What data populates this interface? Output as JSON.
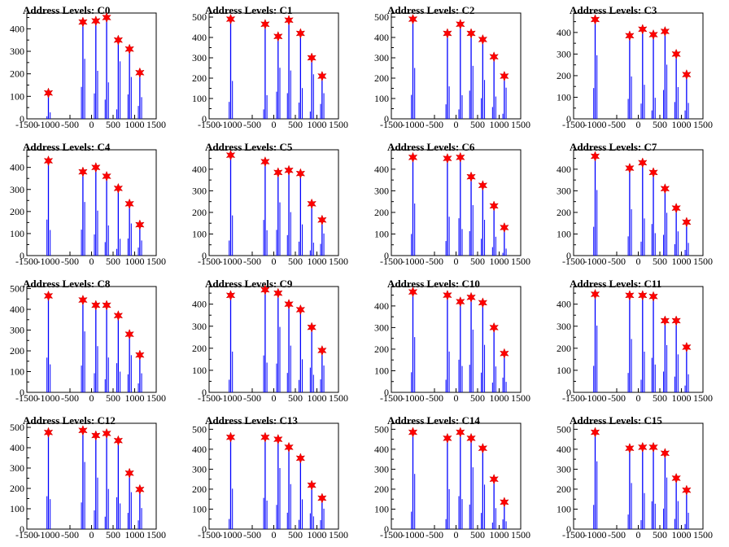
{
  "chart_data": [
    {
      "type": "bar",
      "title": "Address Levels: C0",
      "xlim": [
        -1500,
        1500
      ],
      "yticks": [
        0,
        100,
        200,
        300,
        400
      ],
      "xticks": [
        -1500,
        -1000,
        -500,
        0,
        500,
        1000,
        1500
      ],
      "ylim": [
        0,
        470
      ],
      "peaks": [
        {
          "x": -1000,
          "y": 115
        },
        {
          "x": -200,
          "y": 430
        },
        {
          "x": 100,
          "y": 435
        },
        {
          "x": 350,
          "y": 450
        },
        {
          "x": 620,
          "y": 350
        },
        {
          "x": 880,
          "y": 310
        },
        {
          "x": 1120,
          "y": 205
        }
      ]
    },
    {
      "type": "bar",
      "title": "Address Levels: C1",
      "xlim": [
        -1500,
        1500
      ],
      "yticks": [
        0,
        100,
        200,
        300,
        400,
        500
      ],
      "xticks": [
        -1500,
        -1000,
        -500,
        0,
        500,
        1000,
        1500
      ],
      "ylim": [
        0,
        520
      ],
      "peaks": [
        {
          "x": -1000,
          "y": 490
        },
        {
          "x": -200,
          "y": 465
        },
        {
          "x": 100,
          "y": 405
        },
        {
          "x": 350,
          "y": 485
        },
        {
          "x": 620,
          "y": 420
        },
        {
          "x": 880,
          "y": 300
        },
        {
          "x": 1120,
          "y": 210
        }
      ]
    },
    {
      "type": "bar",
      "title": "Address Levels: C2",
      "xlim": [
        -1500,
        1500
      ],
      "yticks": [
        0,
        100,
        200,
        300,
        400,
        500
      ],
      "xticks": [
        -1500,
        -1000,
        -500,
        0,
        500,
        1000,
        1500
      ],
      "ylim": [
        0,
        520
      ],
      "peaks": [
        {
          "x": -1000,
          "y": 490
        },
        {
          "x": -200,
          "y": 420
        },
        {
          "x": 100,
          "y": 465
        },
        {
          "x": 350,
          "y": 420
        },
        {
          "x": 620,
          "y": 390
        },
        {
          "x": 880,
          "y": 305
        },
        {
          "x": 1120,
          "y": 210
        }
      ]
    },
    {
      "type": "bar",
      "title": "Address Levels: C3",
      "xlim": [
        -1500,
        1500
      ],
      "yticks": [
        0,
        100,
        200,
        300,
        400
      ],
      "xticks": [
        -1500,
        -1000,
        -500,
        0,
        500,
        1000,
        1500
      ],
      "ylim": [
        0,
        490
      ],
      "peaks": [
        {
          "x": -1000,
          "y": 460
        },
        {
          "x": -200,
          "y": 385
        },
        {
          "x": 100,
          "y": 415
        },
        {
          "x": 350,
          "y": 390
        },
        {
          "x": 620,
          "y": 405
        },
        {
          "x": 880,
          "y": 300
        },
        {
          "x": 1120,
          "y": 205
        }
      ]
    },
    {
      "type": "bar",
      "title": "Address Levels: C4",
      "xlim": [
        -1500,
        1500
      ],
      "yticks": [
        0,
        100,
        200,
        300,
        400
      ],
      "xticks": [
        -1500,
        -1000,
        -500,
        0,
        500,
        1000,
        1500
      ],
      "ylim": [
        0,
        480
      ],
      "peaks": [
        {
          "x": -1000,
          "y": 430
        },
        {
          "x": -200,
          "y": 380
        },
        {
          "x": 100,
          "y": 400
        },
        {
          "x": 350,
          "y": 360
        },
        {
          "x": 620,
          "y": 305
        },
        {
          "x": 880,
          "y": 235
        },
        {
          "x": 1120,
          "y": 140
        }
      ]
    },
    {
      "type": "bar",
      "title": "Address Levels: C5",
      "xlim": [
        -1500,
        1500
      ],
      "yticks": [
        0,
        100,
        200,
        300,
        400
      ],
      "xticks": [
        -1500,
        -1000,
        -500,
        0,
        500,
        1000,
        1500
      ],
      "ylim": [
        0,
        490
      ],
      "peaks": [
        {
          "x": -1000,
          "y": 465
        },
        {
          "x": -200,
          "y": 435
        },
        {
          "x": 100,
          "y": 385
        },
        {
          "x": 350,
          "y": 395
        },
        {
          "x": 620,
          "y": 380
        },
        {
          "x": 880,
          "y": 240
        },
        {
          "x": 1120,
          "y": 165
        }
      ]
    },
    {
      "type": "bar",
      "title": "Address Levels: C6",
      "xlim": [
        -1500,
        1500
      ],
      "yticks": [
        0,
        100,
        200,
        300,
        400
      ],
      "xticks": [
        -1500,
        -1000,
        -500,
        0,
        500,
        1000,
        1500
      ],
      "ylim": [
        0,
        490
      ],
      "peaks": [
        {
          "x": -1000,
          "y": 455
        },
        {
          "x": -200,
          "y": 450
        },
        {
          "x": 100,
          "y": 455
        },
        {
          "x": 350,
          "y": 365
        },
        {
          "x": 620,
          "y": 325
        },
        {
          "x": 880,
          "y": 230
        },
        {
          "x": 1120,
          "y": 130
        }
      ]
    },
    {
      "type": "bar",
      "title": "Address Levels: C7",
      "xlim": [
        -1500,
        1500
      ],
      "yticks": [
        0,
        100,
        200,
        300,
        400
      ],
      "xticks": [
        -1500,
        -1000,
        -500,
        0,
        500,
        1000,
        1500
      ],
      "ylim": [
        0,
        490
      ],
      "peaks": [
        {
          "x": -1000,
          "y": 460
        },
        {
          "x": -200,
          "y": 405
        },
        {
          "x": 100,
          "y": 430
        },
        {
          "x": 350,
          "y": 385
        },
        {
          "x": 620,
          "y": 310
        },
        {
          "x": 880,
          "y": 220
        },
        {
          "x": 1120,
          "y": 155
        }
      ]
    },
    {
      "type": "bar",
      "title": "Address Levels: C8",
      "xlim": [
        -1500,
        1500
      ],
      "yticks": [
        0,
        100,
        200,
        300,
        400,
        500
      ],
      "xticks": [
        -1500,
        -1000,
        -500,
        0,
        500,
        1000,
        1500
      ],
      "ylim": [
        0,
        510
      ],
      "peaks": [
        {
          "x": -1000,
          "y": 465
        },
        {
          "x": -200,
          "y": 445
        },
        {
          "x": 100,
          "y": 420
        },
        {
          "x": 350,
          "y": 420
        },
        {
          "x": 620,
          "y": 370
        },
        {
          "x": 880,
          "y": 280
        },
        {
          "x": 1120,
          "y": 180
        }
      ]
    },
    {
      "type": "bar",
      "title": "Address Levels: C9",
      "xlim": [
        -1500,
        1500
      ],
      "yticks": [
        0,
        100,
        200,
        300,
        400
      ],
      "xticks": [
        -1500,
        -1000,
        -500,
        0,
        500,
        1000,
        1500
      ],
      "ylim": [
        0,
        480
      ],
      "peaks": [
        {
          "x": -1000,
          "y": 440
        },
        {
          "x": -200,
          "y": 465
        },
        {
          "x": 100,
          "y": 450
        },
        {
          "x": 350,
          "y": 400
        },
        {
          "x": 620,
          "y": 375
        },
        {
          "x": 880,
          "y": 295
        },
        {
          "x": 1120,
          "y": 190
        }
      ]
    },
    {
      "type": "bar",
      "title": "Address Levels: C10",
      "xlim": [
        -1500,
        1500
      ],
      "yticks": [
        0,
        100,
        200,
        300,
        400
      ],
      "xticks": [
        -1500,
        -1000,
        -500,
        0,
        500,
        1000,
        1500
      ],
      "ylim": [
        0,
        490
      ],
      "peaks": [
        {
          "x": -1000,
          "y": 465
        },
        {
          "x": -200,
          "y": 450
        },
        {
          "x": 100,
          "y": 420
        },
        {
          "x": 350,
          "y": 440
        },
        {
          "x": 620,
          "y": 415
        },
        {
          "x": 880,
          "y": 300
        },
        {
          "x": 1120,
          "y": 180
        }
      ]
    },
    {
      "type": "bar",
      "title": "Address Levels: C11",
      "xlim": [
        -1500,
        1500
      ],
      "yticks": [
        0,
        100,
        200,
        300,
        400
      ],
      "xticks": [
        -1500,
        -1000,
        -500,
        0,
        500,
        1000,
        1500
      ],
      "ylim": [
        0,
        480
      ],
      "peaks": [
        {
          "x": -1000,
          "y": 445
        },
        {
          "x": -200,
          "y": 440
        },
        {
          "x": 100,
          "y": 440
        },
        {
          "x": 350,
          "y": 435
        },
        {
          "x": 620,
          "y": 325
        },
        {
          "x": 880,
          "y": 325
        },
        {
          "x": 1120,
          "y": 205
        }
      ]
    },
    {
      "type": "bar",
      "title": "Address Levels: C12",
      "xlim": [
        -1500,
        1500
      ],
      "yticks": [
        0,
        100,
        200,
        300,
        400,
        500
      ],
      "xticks": [
        -1500,
        -1000,
        -500,
        0,
        500,
        1000,
        1500
      ],
      "ylim": [
        0,
        520
      ],
      "peaks": [
        {
          "x": -1000,
          "y": 475
        },
        {
          "x": -200,
          "y": 485
        },
        {
          "x": 100,
          "y": 460
        },
        {
          "x": 350,
          "y": 470
        },
        {
          "x": 620,
          "y": 435
        },
        {
          "x": 880,
          "y": 275
        },
        {
          "x": 1120,
          "y": 195
        }
      ]
    },
    {
      "type": "bar",
      "title": "Address Levels: C13",
      "xlim": [
        -1500,
        1500
      ],
      "yticks": [
        0,
        100,
        200,
        300,
        400,
        500
      ],
      "xticks": [
        -1500,
        -1000,
        -500,
        0,
        500,
        1000,
        1500
      ],
      "ylim": [
        0,
        530
      ],
      "peaks": [
        {
          "x": -1000,
          "y": 460
        },
        {
          "x": -200,
          "y": 460
        },
        {
          "x": 100,
          "y": 450
        },
        {
          "x": 350,
          "y": 410
        },
        {
          "x": 620,
          "y": 355
        },
        {
          "x": 880,
          "y": 220
        },
        {
          "x": 1120,
          "y": 155
        }
      ]
    },
    {
      "type": "bar",
      "title": "Address Levels: C14",
      "xlim": [
        -1500,
        1500
      ],
      "yticks": [
        0,
        100,
        200,
        300,
        400,
        500
      ],
      "xticks": [
        -1500,
        -1000,
        -500,
        0,
        500,
        1000,
        1500
      ],
      "ylim": [
        0,
        530
      ],
      "peaks": [
        {
          "x": -1000,
          "y": 485
        },
        {
          "x": -200,
          "y": 455
        },
        {
          "x": 100,
          "y": 485
        },
        {
          "x": 350,
          "y": 455
        },
        {
          "x": 620,
          "y": 405
        },
        {
          "x": 880,
          "y": 250
        },
        {
          "x": 1120,
          "y": 135
        }
      ]
    },
    {
      "type": "bar",
      "title": "Address Levels: C15",
      "xlim": [
        -1500,
        1500
      ],
      "yticks": [
        0,
        100,
        200,
        300,
        400,
        500
      ],
      "xticks": [
        -1500,
        -1000,
        -500,
        0,
        500,
        1000,
        1500
      ],
      "ylim": [
        0,
        530
      ],
      "peaks": [
        {
          "x": -1000,
          "y": 485
        },
        {
          "x": -200,
          "y": 405
        },
        {
          "x": 100,
          "y": 410
        },
        {
          "x": 350,
          "y": 410
        },
        {
          "x": 620,
          "y": 380
        },
        {
          "x": 880,
          "y": 255
        },
        {
          "x": 1120,
          "y": 195
        }
      ]
    }
  ],
  "colors": {
    "bar": "#0000ff",
    "marker": "#ff0000",
    "axis": "#000000"
  }
}
